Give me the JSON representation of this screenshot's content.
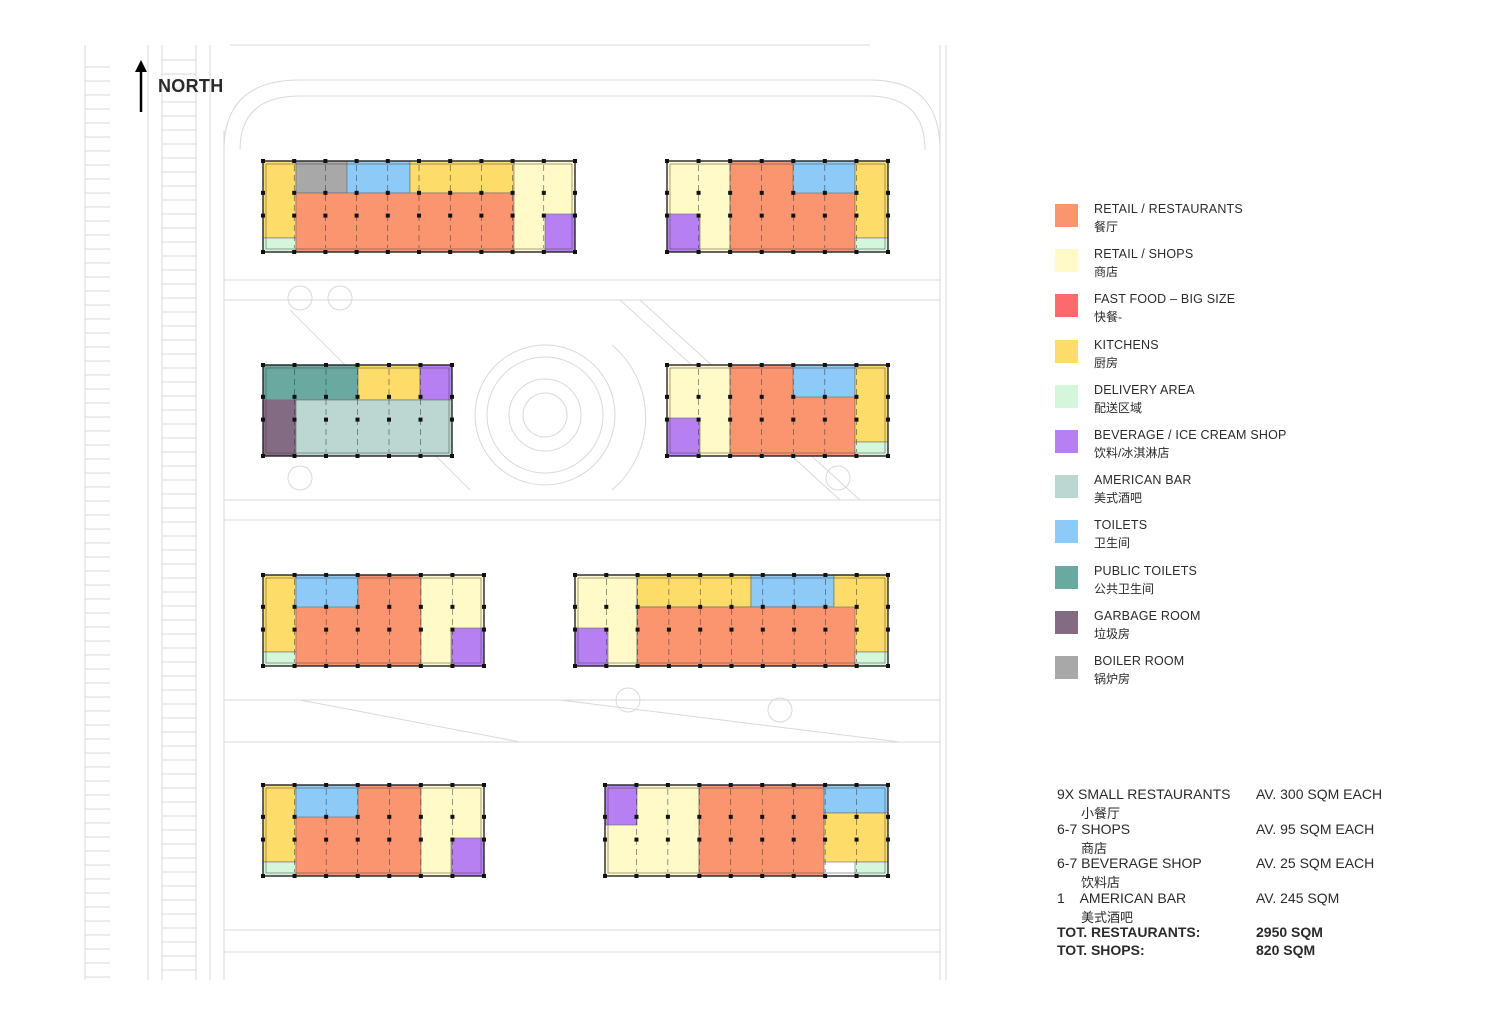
{
  "north_label": "NORTH",
  "colors": {
    "retail_restaurants": "#fb9570",
    "retail_shops": "#fffac8",
    "fast_food": "#fd6a6d",
    "kitchens": "#fddc6a",
    "delivery": "#d4f7dc",
    "beverage": "#b680f3",
    "american_bar": "#bcd6d2",
    "toilets": "#8ecaf8",
    "public_toilets": "#6aa99f",
    "garbage": "#846b84",
    "boiler": "#a8a8a8"
  },
  "legend": [
    {
      "key": "retail_restaurants",
      "color": "#fb9570",
      "en": "RETAIL / RESTAURANTS",
      "zh": "餐厅"
    },
    {
      "key": "retail_shops",
      "color": "#fffac8",
      "en": "RETAIL / SHOPS",
      "zh": "商店"
    },
    {
      "key": "fast_food",
      "color": "#fd6a6d",
      "en": "FAST FOOD – BIG SIZE",
      "zh": "快餐-"
    },
    {
      "key": "kitchens",
      "color": "#fddc6a",
      "en": "KITCHENS",
      "zh": "厨房"
    },
    {
      "key": "delivery",
      "color": "#d4f7dc",
      "en": "DELIVERY AREA",
      "zh": "配送区域"
    },
    {
      "key": "beverage",
      "color": "#b680f3",
      "en": "BEVERAGE / ICE CREAM SHOP",
      "zh": "饮料/冰淇淋店"
    },
    {
      "key": "american_bar",
      "color": "#bcd6d2",
      "en": "AMERICAN BAR",
      "zh": "美式酒吧"
    },
    {
      "key": "toilets",
      "color": "#8ecaf8",
      "en": "TOILETS",
      "zh": "卫生间"
    },
    {
      "key": "public_toilets",
      "color": "#6aa99f",
      "en": "PUBLIC TOILETS",
      "zh": "公共卫生间"
    },
    {
      "key": "garbage",
      "color": "#846b84",
      "en": "GARBAGE ROOM",
      "zh": "垃圾房"
    },
    {
      "key": "boiler",
      "color": "#a8a8a8",
      "en": "BOILER  ROOM",
      "zh": "锅炉房"
    }
  ],
  "summary": [
    {
      "label": "9X SMALL RESTAURANTS",
      "zh": "小餐厅",
      "value": "AV. 300 SQM EACH"
    },
    {
      "label": "6-7 SHOPS",
      "zh": "商店",
      "value": "AV. 95 SQM EACH"
    },
    {
      "label": "6-7 BEVERAGE SHOP",
      "zh": "饮料店",
      "value": "AV. 25 SQM EACH"
    },
    {
      "label": "1    AMERICAN BAR",
      "zh": "美式酒吧",
      "value": "AV. 245 SQM"
    }
  ],
  "totals": [
    {
      "label": "TOT. RESTAURANTS:",
      "value": "2950 SQM"
    },
    {
      "label": "TOT. SHOPS:",
      "value": "820 SQM"
    }
  ]
}
